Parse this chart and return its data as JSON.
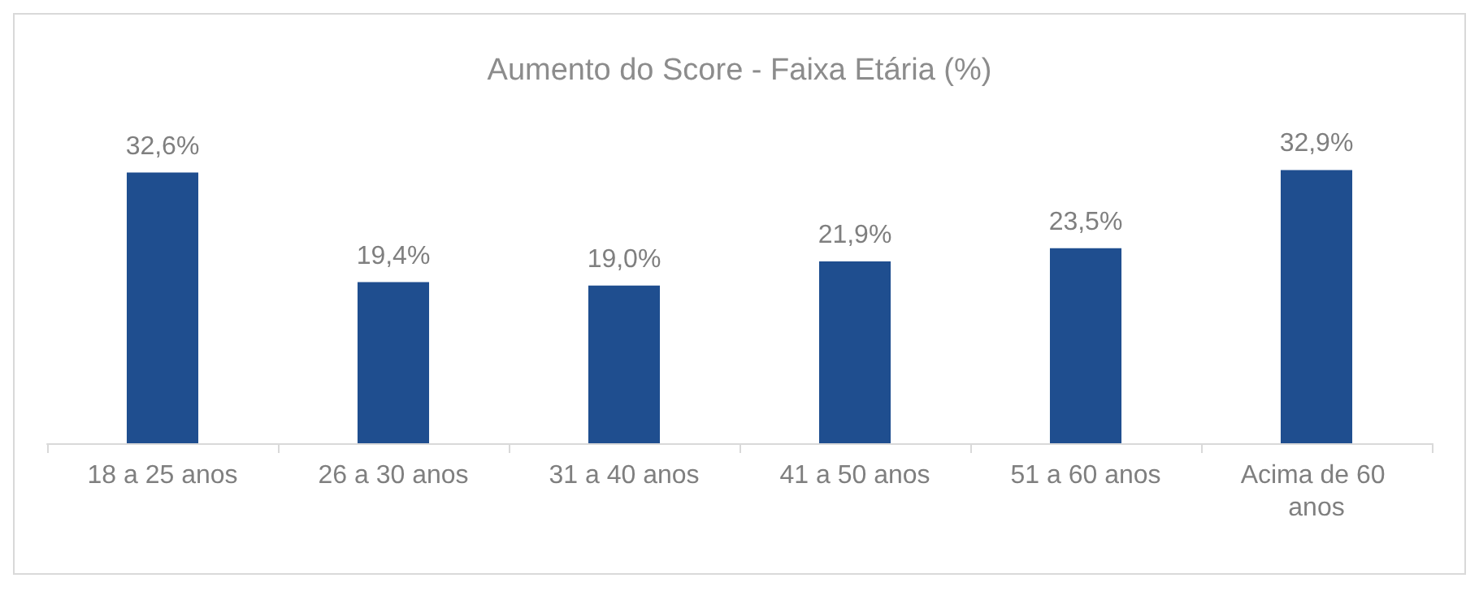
{
  "chart_data": {
    "type": "bar",
    "title": "Aumento do Score - Faixa Etária (%)",
    "categories": [
      "18 a 25 anos",
      "26 a 30 anos",
      "31 a 40 anos",
      "41 a 50 anos",
      "51 a 60 anos",
      "Acima de 60 anos"
    ],
    "values": [
      32.6,
      19.4,
      19.0,
      21.9,
      23.5,
      32.9
    ],
    "value_labels": [
      "32,6%",
      "19,4%",
      "19,0%",
      "21,9%",
      "23,5%",
      "32,9%"
    ],
    "color": "#1f4e8f"
  }
}
